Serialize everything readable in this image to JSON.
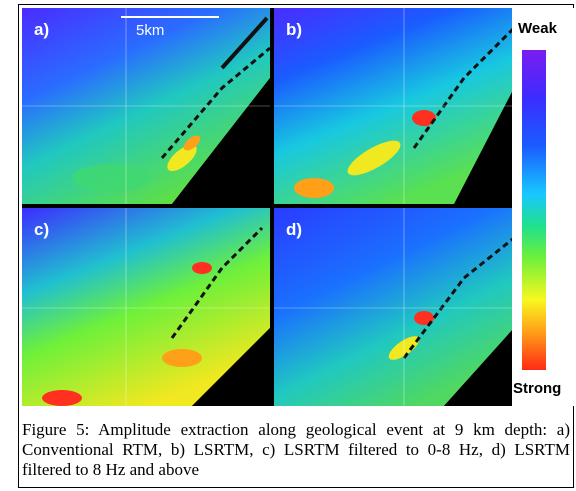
{
  "panels": [
    {
      "id": "a",
      "label": "a)"
    },
    {
      "id": "b",
      "label": "b)"
    },
    {
      "id": "c",
      "label": "c)"
    },
    {
      "id": "d",
      "label": "d)"
    }
  ],
  "scale_bar": {
    "label": "5km"
  },
  "colorbar": {
    "top_label": "Weak",
    "bottom_label": "Strong",
    "colors": [
      "#7b1cf0",
      "#3c2cff",
      "#1a5cff",
      "#18c8ff",
      "#20e08c",
      "#6ef03a",
      "#f8f820",
      "#ffa018",
      "#ff2a14"
    ]
  },
  "caption": "Figure 5: Amplitude extraction along geological event at 9 km depth: a) Conventional RTM, b) LSRTM, c) LSRTM filtered to 0-8 Hz, d) LSRTM filtered to 8 Hz and above"
}
